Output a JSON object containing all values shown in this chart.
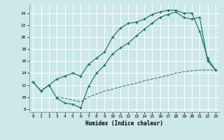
{
  "xlabel": "Humidex (Indice chaleur)",
  "xlim": [
    -0.5,
    23.5
  ],
  "ylim": [
    7.5,
    25.5
  ],
  "yticks": [
    8,
    10,
    12,
    14,
    16,
    18,
    20,
    22,
    24
  ],
  "xticks": [
    0,
    1,
    2,
    3,
    4,
    5,
    6,
    7,
    8,
    9,
    10,
    11,
    12,
    13,
    14,
    15,
    16,
    17,
    18,
    19,
    20,
    21,
    22,
    23
  ],
  "bg_color": "#cce8e8",
  "line_color": "#1a6b5a",
  "grid_color": "#ffffff",
  "line1_x": [
    0,
    1,
    2,
    3,
    4,
    5,
    6,
    7,
    8,
    9,
    10,
    11,
    12,
    13,
    14,
    15,
    16,
    17,
    18,
    19,
    20,
    21,
    22,
    23
  ],
  "line1_y": [
    12.5,
    11.0,
    12.0,
    13.0,
    13.5,
    14.0,
    13.5,
    15.5,
    16.5,
    17.5,
    20.0,
    21.5,
    22.3,
    22.5,
    23.0,
    23.8,
    24.2,
    24.5,
    24.5,
    24.0,
    24.0,
    21.0,
    16.5,
    14.5
  ],
  "line2_x": [
    0,
    1,
    2,
    3,
    4,
    5,
    6,
    7,
    8,
    9,
    10,
    11,
    12,
    13,
    14,
    15,
    16,
    17,
    18,
    19,
    20,
    21,
    22,
    23
  ],
  "line2_y": [
    12.5,
    11.0,
    12.0,
    9.8,
    9.0,
    8.8,
    8.2,
    11.8,
    14.0,
    15.3,
    17.2,
    18.2,
    19.0,
    20.2,
    21.3,
    22.3,
    23.3,
    23.8,
    24.2,
    23.3,
    23.0,
    23.3,
    16.0,
    14.5
  ],
  "line3_x": [
    3,
    4,
    5,
    6,
    7,
    8,
    9,
    10,
    11,
    12,
    13,
    14,
    15,
    16,
    17,
    18,
    19,
    20,
    21,
    22,
    23
  ],
  "line3_y": [
    10.0,
    9.8,
    9.5,
    9.2,
    10.0,
    10.5,
    11.0,
    11.3,
    11.7,
    12.0,
    12.3,
    12.7,
    13.0,
    13.3,
    13.6,
    14.0,
    14.2,
    14.4,
    14.5,
    14.5,
    14.5
  ]
}
